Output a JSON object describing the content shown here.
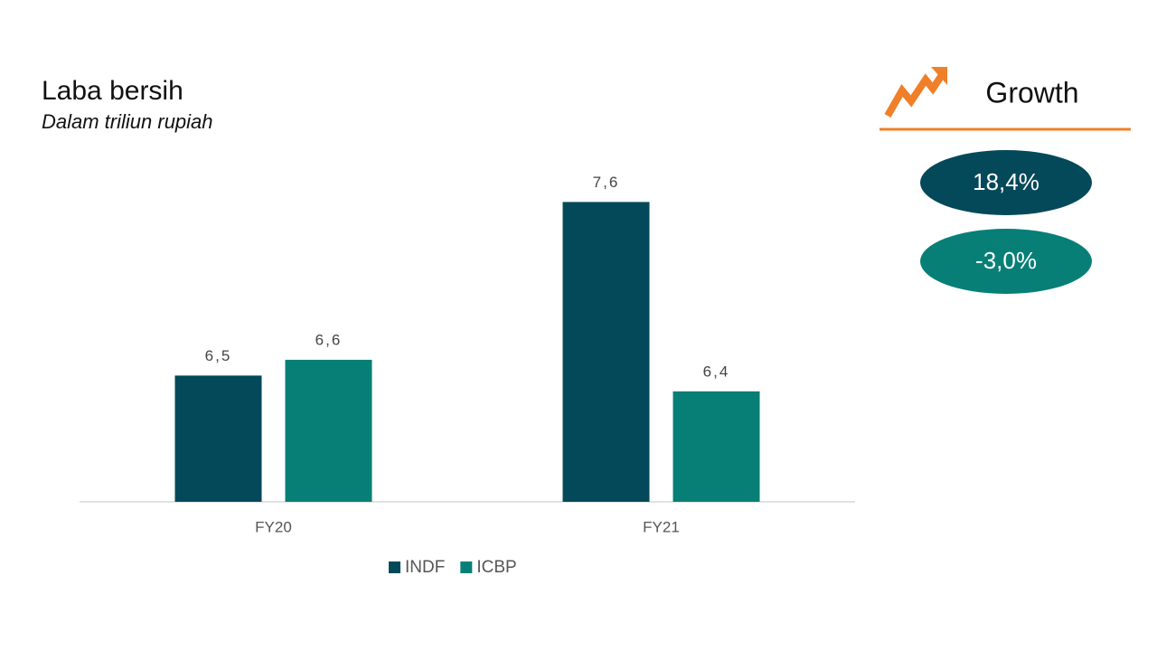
{
  "chart_data": {
    "type": "bar",
    "title": "Laba bersih",
    "subtitle": "Dalam triliun rupiah",
    "categories": [
      "FY20",
      "FY21"
    ],
    "series": [
      {
        "name": "INDF",
        "color": "#03495a",
        "values": [
          6.5,
          7.6
        ],
        "value_labels": [
          "6,5",
          "7,6"
        ]
      },
      {
        "name": "ICBP",
        "color": "#077f77",
        "values": [
          6.6,
          6.4
        ],
        "value_labels": [
          "6,6",
          "6,4"
        ]
      }
    ],
    "ylim": [
      5.7,
      7.8
    ],
    "grid": false,
    "legend": "bottom"
  },
  "growth": {
    "title": "Growth",
    "items": [
      {
        "label": "18,4%",
        "color": "#03495a"
      },
      {
        "label": "-3,0%",
        "color": "#077f77"
      }
    ]
  }
}
